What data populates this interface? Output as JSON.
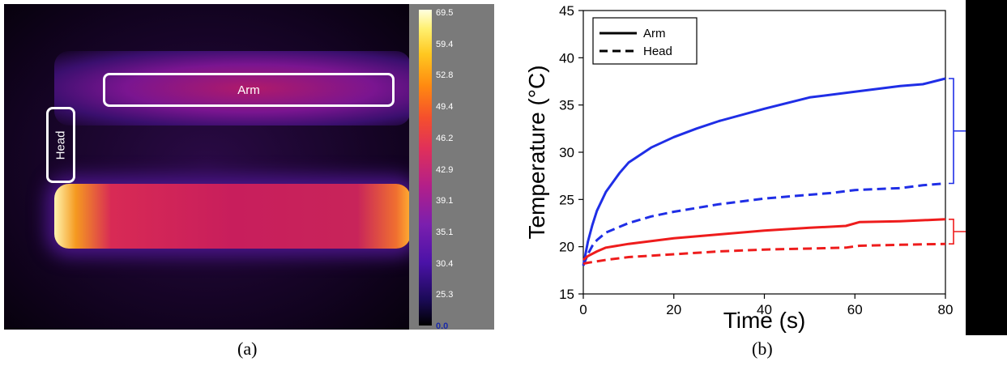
{
  "panel_a": {
    "caption": "(a)",
    "labels": {
      "arm": "Arm",
      "head": "Head"
    },
    "colorscale_ticks": [
      "69.5",
      "59.4",
      "52.8",
      "49.4",
      "46.2",
      "42.9",
      "39.1",
      "35.1",
      "30.4",
      "25.3",
      "0.0"
    ]
  },
  "panel_b": {
    "caption": "(b)"
  },
  "colors": {
    "blue": "#1f2ee6",
    "red": "#ee1c1c",
    "axis": "#000000"
  },
  "chart_data": {
    "type": "line",
    "xlabel": "Time (s)",
    "ylabel": "Temperature (°C)",
    "xlim": [
      0,
      80
    ],
    "ylim": [
      15,
      45
    ],
    "xticks": [
      0,
      20,
      40,
      60,
      80
    ],
    "yticks": [
      15,
      20,
      25,
      30,
      35,
      40,
      45
    ],
    "legend": {
      "placement": "top-left",
      "entries": [
        {
          "label": "Arm",
          "style": "solid"
        },
        {
          "label": "Head",
          "style": "dashed"
        }
      ]
    },
    "grid": false,
    "series": [
      {
        "color": "blue",
        "style": "solid",
        "x": [
          0,
          1,
          2,
          3,
          5,
          8,
          10,
          15,
          20,
          25,
          30,
          40,
          50,
          60,
          70,
          75,
          80
        ],
        "y": [
          18.0,
          20.5,
          22.3,
          23.8,
          25.8,
          27.8,
          28.9,
          30.5,
          31.6,
          32.5,
          33.3,
          34.6,
          35.8,
          36.4,
          37.0,
          37.2,
          37.8
        ]
      },
      {
        "color": "blue",
        "style": "dashed",
        "x": [
          0,
          1,
          2,
          3,
          5,
          10,
          15,
          20,
          30,
          40,
          50,
          55,
          60,
          70,
          75,
          80
        ],
        "y": [
          18.0,
          19.2,
          20.1,
          20.7,
          21.5,
          22.5,
          23.2,
          23.7,
          24.5,
          25.1,
          25.5,
          25.7,
          26.0,
          26.2,
          26.5,
          26.7
        ]
      },
      {
        "color": "red",
        "style": "solid",
        "x": [
          0,
          1,
          3,
          5,
          10,
          20,
          30,
          40,
          50,
          58,
          61,
          70,
          80
        ],
        "y": [
          18.6,
          19.0,
          19.5,
          19.9,
          20.3,
          20.9,
          21.3,
          21.7,
          22.0,
          22.2,
          22.6,
          22.7,
          22.9
        ]
      },
      {
        "color": "red",
        "style": "dashed",
        "x": [
          0,
          1,
          5,
          10,
          20,
          30,
          40,
          50,
          58,
          61,
          70,
          80
        ],
        "y": [
          18.2,
          18.3,
          18.6,
          18.9,
          19.2,
          19.5,
          19.7,
          19.8,
          19.9,
          20.1,
          20.2,
          20.3
        ]
      }
    ]
  }
}
